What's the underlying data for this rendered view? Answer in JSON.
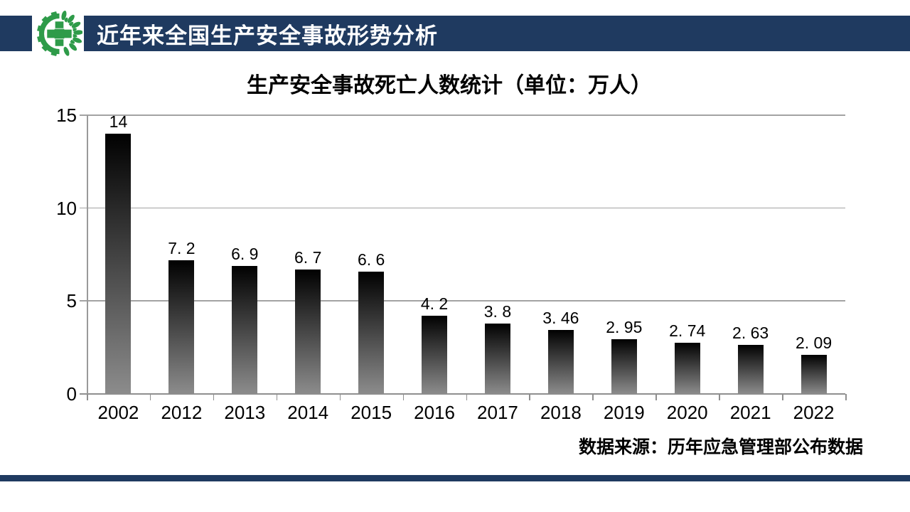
{
  "header": {
    "title": "近年来全国生产安全事故形势分析"
  },
  "logo": {
    "name": "work-safety-logo",
    "green": "#2e9b49"
  },
  "colors": {
    "navy": "#1f3a60",
    "grid": "#a3a3a3",
    "bar_top": "#010101",
    "bar_bottom": "#8c8c8c"
  },
  "chart_data": {
    "type": "bar",
    "title": "生产安全事故死亡人数统计（单位：万人）",
    "categories": [
      "2002",
      "2012",
      "2013",
      "2014",
      "2015",
      "2016",
      "2017",
      "2018",
      "2019",
      "2020",
      "2021",
      "2022"
    ],
    "values": [
      14,
      7.2,
      6.9,
      6.7,
      6.6,
      4.2,
      3.8,
      3.46,
      2.95,
      2.74,
      2.63,
      2.09
    ],
    "value_labels": [
      "14",
      "7. 2",
      "6. 9",
      "6. 7",
      "6. 6",
      "4. 2",
      "3. 8",
      "3. 46",
      "2. 95",
      "2. 74",
      "2. 63",
      "2. 09"
    ],
    "xlabel": "",
    "ylabel": "",
    "ylim": [
      0,
      15
    ],
    "y_ticks": [
      15,
      10,
      5,
      0
    ],
    "grid": true,
    "legend": false,
    "source": "数据来源：历年应急管理部公布数据"
  }
}
